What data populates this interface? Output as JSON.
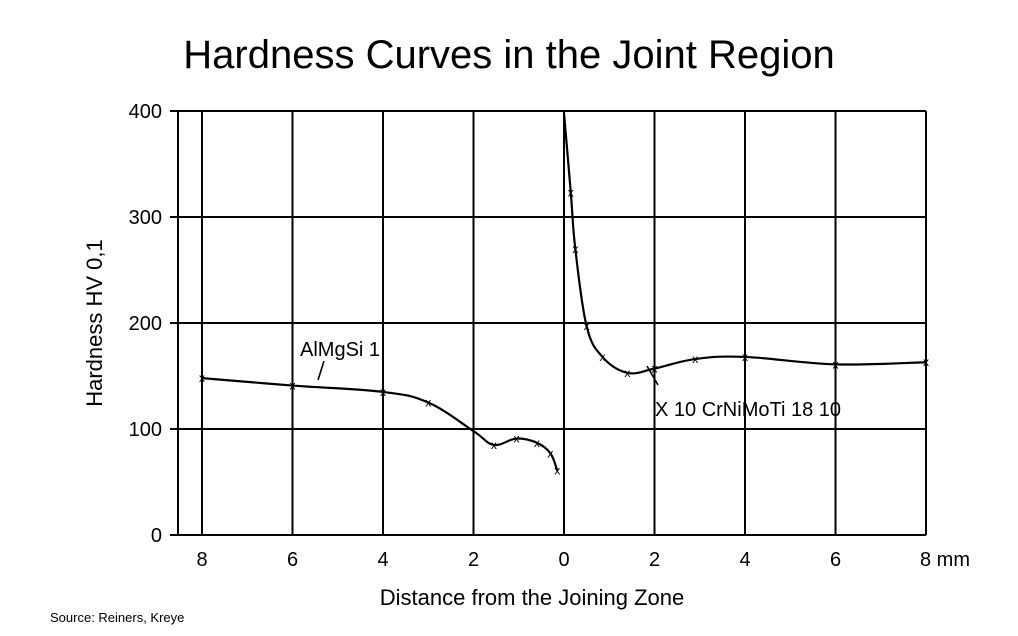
{
  "chart_data": {
    "type": "line",
    "title": "Hardness Curves in the Joint Region",
    "xlabel": "Distance from the Joining Zone",
    "ylabel": "Hardness HV 0,1",
    "source": "Source: Reiners, Kreye",
    "grid": true,
    "ylim": [
      0,
      400
    ],
    "y_ticks": [
      "0",
      "100",
      "200",
      "300",
      "400"
    ],
    "x_ticks": [
      {
        "pos": -8,
        "label": "8"
      },
      {
        "pos": -6,
        "label": "6"
      },
      {
        "pos": -4,
        "label": "4"
      },
      {
        "pos": -2,
        "label": "2"
      },
      {
        "pos": 0,
        "label": "0"
      },
      {
        "pos": 2,
        "label": "2"
      },
      {
        "pos": 4,
        "label": "4"
      },
      {
        "pos": 6,
        "label": "6"
      },
      {
        "pos": 8,
        "label": "8 mm"
      }
    ],
    "marker_symbol": "x",
    "series": [
      {
        "name": "AlMgSi 1",
        "x": [
          -8,
          -6,
          -4,
          -3,
          -2,
          -1.55,
          -1.05,
          -0.6,
          -0.3,
          -0.15
        ],
        "y": [
          148,
          141,
          135,
          125,
          98,
          85,
          91,
          87,
          77,
          61
        ],
        "markers": [
          true,
          true,
          true,
          true,
          false,
          true,
          true,
          true,
          true,
          true
        ]
      },
      {
        "name": "X 10 CrNiMoTi 18 10",
        "x": [
          0,
          0.15,
          0.25,
          0.5,
          0.85,
          1.4,
          2,
          2.9,
          4,
          6,
          8
        ],
        "y": [
          398,
          323,
          270,
          197,
          168,
          153,
          157,
          166,
          168,
          161,
          163
        ],
        "markers": [
          false,
          true,
          true,
          true,
          true,
          true,
          true,
          true,
          true,
          true,
          true
        ]
      }
    ]
  }
}
